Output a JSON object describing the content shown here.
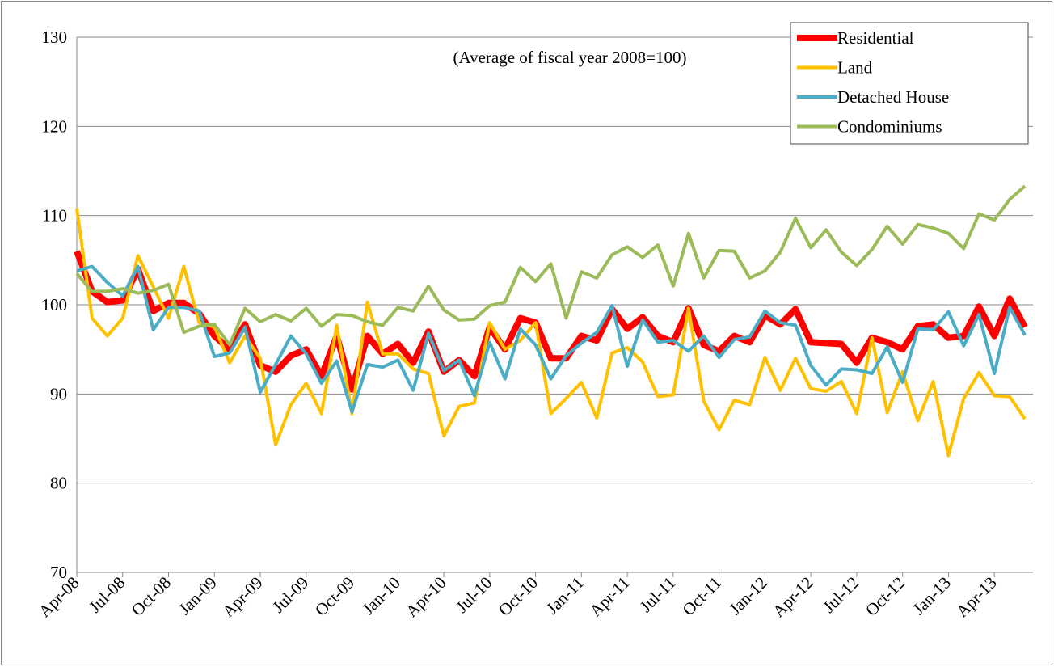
{
  "chart_data": {
    "type": "line",
    "subtitle": "(Average of fiscal year 2008=100)",
    "categories": [
      "Apr-08",
      null,
      null,
      "Jul-08",
      null,
      null,
      "Oct-08",
      null,
      null,
      "Jan-09",
      null,
      null,
      "Apr-09",
      null,
      null,
      "Jul-09",
      null,
      null,
      "Oct-09",
      null,
      null,
      "Jan-10",
      null,
      null,
      "Apr-10",
      null,
      null,
      "Jul-10",
      null,
      null,
      "Oct-10",
      null,
      null,
      "Jan-11",
      null,
      null,
      "Apr-11",
      null,
      null,
      "Jul-11",
      null,
      null,
      "Oct-11",
      null,
      null,
      "Jan-12",
      null,
      null,
      "Apr-12",
      null,
      null,
      "Jul-12",
      null,
      null,
      "Oct-12",
      null,
      null,
      "Jan-13",
      null,
      null,
      "Apr-13",
      null,
      null
    ],
    "series": [
      {
        "name": "Residential",
        "color": "#ff0000",
        "values": [
          106,
          101.5,
          100.3,
          100.5,
          104,
          99.3,
          100.2,
          100.2,
          99,
          96.5,
          95,
          97.8,
          93.2,
          92.5,
          94.3,
          95,
          92,
          96.5,
          90.5,
          96.5,
          94.5,
          95.6,
          93.5,
          97,
          92.5,
          93.8,
          92,
          97.5,
          95,
          98.5,
          98,
          94,
          94,
          96.5,
          96,
          99.5,
          97.3,
          98.6,
          96.5,
          95.8,
          99.6,
          95.5,
          94.8,
          96.5,
          95.8,
          98.8,
          97.8,
          99.5,
          95.8,
          95.7,
          95.6,
          93.5,
          96.3,
          95.8,
          95,
          97.6,
          97.8,
          96.3,
          96.5,
          99.8,
          96.5,
          100.7,
          97.5
        ]
      },
      {
        "name": "Land",
        "color": "#ffc000",
        "values": [
          110.8,
          98.5,
          96.5,
          98.5,
          105.5,
          102,
          98.5,
          104.3,
          98,
          97.5,
          93.5,
          96.5,
          94,
          84.3,
          88.8,
          91.2,
          87.8,
          97.7,
          87.8,
          100.3,
          94.5,
          94.5,
          92.8,
          92.3,
          85.3,
          88.6,
          89,
          98,
          95,
          96,
          98,
          87.8,
          89.5,
          91.3,
          87.3,
          94.6,
          95.2,
          93.6,
          89.7,
          89.9,
          99.6,
          89.2,
          86,
          89.3,
          88.8,
          94.1,
          90.4,
          94,
          90.6,
          90.3,
          91.4,
          87.8,
          96.3,
          87.9,
          92.5,
          87,
          91.4,
          83.1,
          89.5,
          92.4,
          89.8,
          89.7,
          87.2
        ]
      },
      {
        "name": "Detached House",
        "color": "#4bacc6",
        "values": [
          103.8,
          104.3,
          102.5,
          101,
          104.3,
          97.2,
          99.7,
          99.7,
          99.3,
          94.2,
          94.6,
          97.5,
          90.2,
          93.3,
          96.5,
          94.5,
          91.2,
          93.7,
          88,
          93.3,
          93,
          93.8,
          90.4,
          96.8,
          92.6,
          93.8,
          89.8,
          95.8,
          91.7,
          97.3,
          95.5,
          91.7,
          94.3,
          95.7,
          96.9,
          99.9,
          93.1,
          98.3,
          95.8,
          96,
          94.8,
          96.5,
          94.1,
          96.1,
          96.4,
          99.3,
          98,
          97.7,
          93.2,
          91,
          92.8,
          92.7,
          92.3,
          95.3,
          91.3,
          97.3,
          97.2,
          99.2,
          95.4,
          98.9,
          92.3,
          99.7,
          96.6
        ]
      },
      {
        "name": "Condominiums",
        "color": "#9bbb59",
        "values": [
          103.5,
          101.5,
          101.5,
          101.8,
          101.3,
          101.6,
          102.3,
          96.9,
          97.6,
          97.8,
          95.5,
          99.6,
          98.1,
          98.9,
          98.2,
          99.6,
          97.6,
          98.9,
          98.8,
          98.1,
          97.7,
          99.7,
          99.3,
          102.1,
          99.4,
          98.3,
          98.4,
          99.9,
          100.3,
          104.2,
          102.6,
          104.6,
          98.5,
          103.7,
          103,
          105.6,
          106.5,
          105.3,
          106.7,
          102.1,
          108,
          103,
          106.1,
          106,
          103,
          103.8,
          105.9,
          109.7,
          106.4,
          108.4,
          105.9,
          104.4,
          106.2,
          108.8,
          106.8,
          109,
          108.6,
          108,
          106.3,
          110.2,
          109.5,
          111.8,
          113.3
        ]
      }
    ],
    "ylim": [
      70,
      130
    ],
    "yticks": [
      70,
      80,
      90,
      100,
      110,
      120,
      130
    ],
    "grid": true,
    "legend": "upper right"
  }
}
